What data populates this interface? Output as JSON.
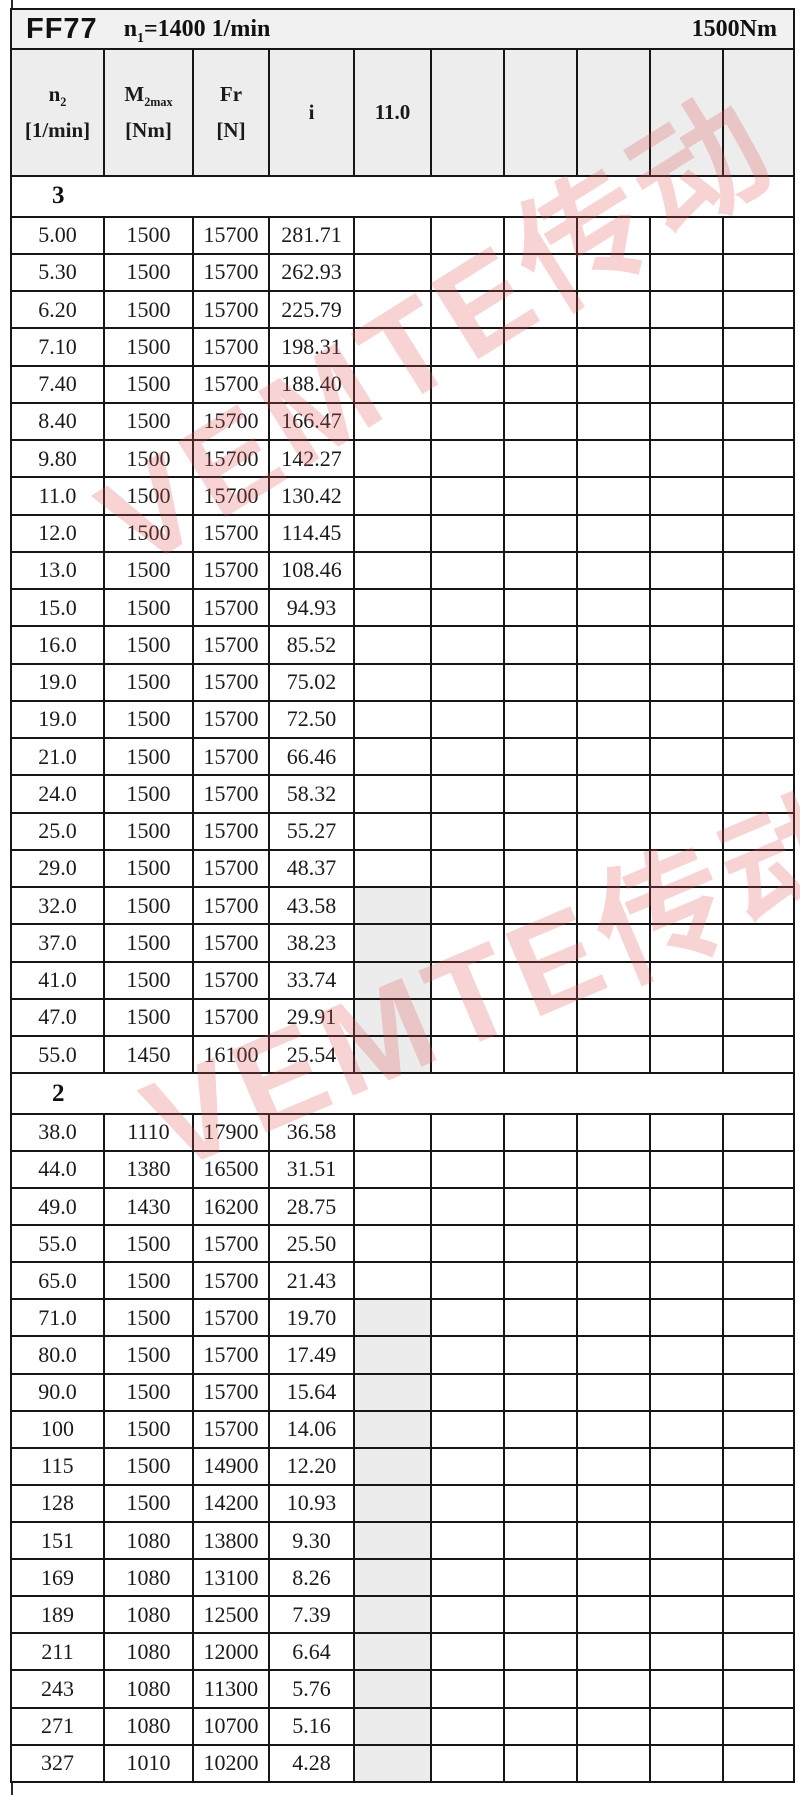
{
  "title": {
    "model": "FF77",
    "speed_base": "n",
    "speed_sub": "1",
    "speed_rest": "=1400 1/min",
    "torque": "1500Nm"
  },
  "columns": {
    "col1": {
      "base": "n",
      "sub": "2",
      "unit": "[1/min]"
    },
    "col2": {
      "base": "M",
      "sub": "2max",
      "unit": "[Nm]"
    },
    "col3": {
      "base": "Fr",
      "unit": "[N]"
    },
    "col4": {
      "label": "i"
    },
    "col5": {
      "label": "11.0"
    }
  },
  "watermark": {
    "text": "VEMTE传动",
    "color": "#e25454"
  },
  "colors": {
    "border": "#161616",
    "header_bg": "#ededed",
    "title_bg": "#f1f1f1",
    "shaded_cell_bg": "#ececec"
  },
  "sections": [
    {
      "label": "3",
      "rows": [
        {
          "n2": "5.00",
          "m2max": "1500",
          "fr": "15700",
          "i": "281.71",
          "shaded": false
        },
        {
          "n2": "5.30",
          "m2max": "1500",
          "fr": "15700",
          "i": "262.93",
          "shaded": false
        },
        {
          "n2": "6.20",
          "m2max": "1500",
          "fr": "15700",
          "i": "225.79",
          "shaded": false
        },
        {
          "n2": "7.10",
          "m2max": "1500",
          "fr": "15700",
          "i": "198.31",
          "shaded": false
        },
        {
          "n2": "7.40",
          "m2max": "1500",
          "fr": "15700",
          "i": "188.40",
          "shaded": false
        },
        {
          "n2": "8.40",
          "m2max": "1500",
          "fr": "15700",
          "i": "166.47",
          "shaded": false
        },
        {
          "n2": "9.80",
          "m2max": "1500",
          "fr": "15700",
          "i": "142.27",
          "shaded": false
        },
        {
          "n2": "11.0",
          "m2max": "1500",
          "fr": "15700",
          "i": "130.42",
          "shaded": false
        },
        {
          "n2": "12.0",
          "m2max": "1500",
          "fr": "15700",
          "i": "114.45",
          "shaded": false
        },
        {
          "n2": "13.0",
          "m2max": "1500",
          "fr": "15700",
          "i": "108.46",
          "shaded": false
        },
        {
          "n2": "15.0",
          "m2max": "1500",
          "fr": "15700",
          "i": "94.93",
          "shaded": false
        },
        {
          "n2": "16.0",
          "m2max": "1500",
          "fr": "15700",
          "i": "85.52",
          "shaded": false
        },
        {
          "n2": "19.0",
          "m2max": "1500",
          "fr": "15700",
          "i": "75.02",
          "shaded": false
        },
        {
          "n2": "19.0",
          "m2max": "1500",
          "fr": "15700",
          "i": "72.50",
          "shaded": false
        },
        {
          "n2": "21.0",
          "m2max": "1500",
          "fr": "15700",
          "i": "66.46",
          "shaded": false
        },
        {
          "n2": "24.0",
          "m2max": "1500",
          "fr": "15700",
          "i": "58.32",
          "shaded": false
        },
        {
          "n2": "25.0",
          "m2max": "1500",
          "fr": "15700",
          "i": "55.27",
          "shaded": false
        },
        {
          "n2": "29.0",
          "m2max": "1500",
          "fr": "15700",
          "i": "48.37",
          "shaded": false
        },
        {
          "n2": "32.0",
          "m2max": "1500",
          "fr": "15700",
          "i": "43.58",
          "shaded": true
        },
        {
          "n2": "37.0",
          "m2max": "1500",
          "fr": "15700",
          "i": "38.23",
          "shaded": true
        },
        {
          "n2": "41.0",
          "m2max": "1500",
          "fr": "15700",
          "i": "33.74",
          "shaded": true
        },
        {
          "n2": "47.0",
          "m2max": "1500",
          "fr": "15700",
          "i": "29.91",
          "shaded": true
        },
        {
          "n2": "55.0",
          "m2max": "1450",
          "fr": "16100",
          "i": "25.54",
          "shaded": true
        }
      ]
    },
    {
      "label": "2",
      "rows": [
        {
          "n2": "38.0",
          "m2max": "1110",
          "fr": "17900",
          "i": "36.58",
          "shaded": false
        },
        {
          "n2": "44.0",
          "m2max": "1380",
          "fr": "16500",
          "i": "31.51",
          "shaded": false
        },
        {
          "n2": "49.0",
          "m2max": "1430",
          "fr": "16200",
          "i": "28.75",
          "shaded": false
        },
        {
          "n2": "55.0",
          "m2max": "1500",
          "fr": "15700",
          "i": "25.50",
          "shaded": false
        },
        {
          "n2": "65.0",
          "m2max": "1500",
          "fr": "15700",
          "i": "21.43",
          "shaded": false
        },
        {
          "n2": "71.0",
          "m2max": "1500",
          "fr": "15700",
          "i": "19.70",
          "shaded": true
        },
        {
          "n2": "80.0",
          "m2max": "1500",
          "fr": "15700",
          "i": "17.49",
          "shaded": true
        },
        {
          "n2": "90.0",
          "m2max": "1500",
          "fr": "15700",
          "i": "15.64",
          "shaded": true
        },
        {
          "n2": "100",
          "m2max": "1500",
          "fr": "15700",
          "i": "14.06",
          "shaded": true
        },
        {
          "n2": "115",
          "m2max": "1500",
          "fr": "14900",
          "i": "12.20",
          "shaded": true
        },
        {
          "n2": "128",
          "m2max": "1500",
          "fr": "14200",
          "i": "10.93",
          "shaded": true
        },
        {
          "n2": "151",
          "m2max": "1080",
          "fr": "13800",
          "i": "9.30",
          "shaded": true
        },
        {
          "n2": "169",
          "m2max": "1080",
          "fr": "13100",
          "i": "8.26",
          "shaded": true
        },
        {
          "n2": "189",
          "m2max": "1080",
          "fr": "12500",
          "i": "7.39",
          "shaded": true
        },
        {
          "n2": "211",
          "m2max": "1080",
          "fr": "12000",
          "i": "6.64",
          "shaded": true
        },
        {
          "n2": "243",
          "m2max": "1080",
          "fr": "11300",
          "i": "5.76",
          "shaded": true
        },
        {
          "n2": "271",
          "m2max": "1080",
          "fr": "10700",
          "i": "5.16",
          "shaded": true
        },
        {
          "n2": "327",
          "m2max": "1010",
          "fr": "10200",
          "i": "4.28",
          "shaded": true
        }
      ]
    }
  ]
}
